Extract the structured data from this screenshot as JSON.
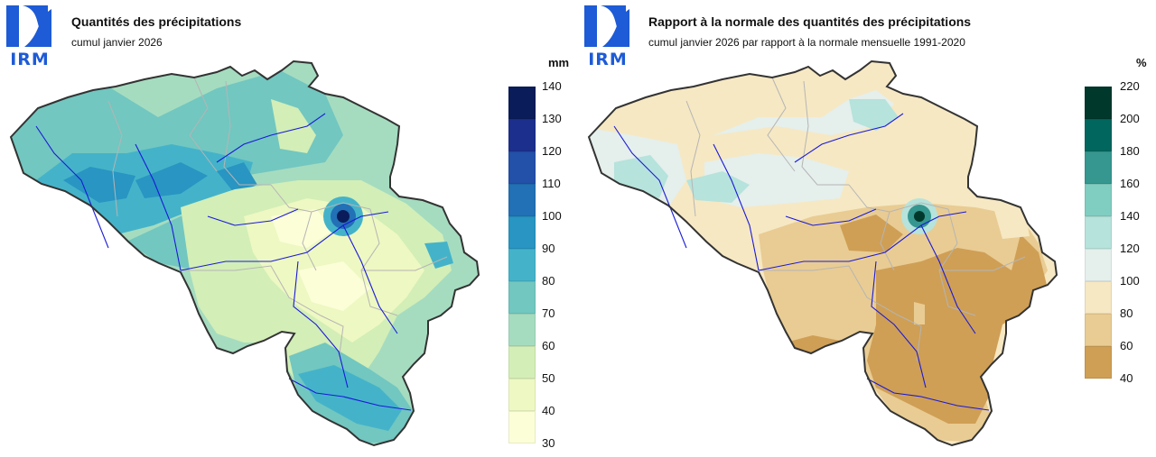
{
  "maps": [
    {
      "id": "precip",
      "logo_text": "IRM",
      "title": "Quantités des précipitations",
      "subtitle": "cumul janvier 2026",
      "unit": "mm",
      "legend": {
        "ticks": [
          "140",
          "130",
          "120",
          "110",
          "100",
          "90",
          "80",
          "70",
          "60",
          "50",
          "40",
          "30"
        ],
        "colors": [
          "#0b1c5a",
          "#1c2f8c",
          "#2350a8",
          "#2270b5",
          "#2895c2",
          "#44b3c9",
          "#72c7c0",
          "#a5dcc0",
          "#d3eeb7",
          "#eef8c2",
          "#fcfed8"
        ]
      },
      "zones": [
        {
          "fill": "#a5dcc0",
          "value": "60-70 mm"
        },
        {
          "fill": "#72c7c0",
          "value": "70-80 mm"
        },
        {
          "fill": "#44b3c9",
          "value": "80-90 mm"
        },
        {
          "fill": "#2895c2",
          "value": "90-100 mm"
        },
        {
          "fill": "#d3eeb7",
          "value": "50-60 mm"
        },
        {
          "fill": "#eef8c2",
          "value": "40-50 mm"
        },
        {
          "fill": "#fcfed8",
          "value": "30-40 mm"
        },
        {
          "fill": "#0b1c5a",
          "value": "> 130 mm"
        }
      ]
    },
    {
      "id": "ratio",
      "logo_text": "IRM",
      "title": "Rapport à la normale des quantités des précipitations",
      "subtitle": "cumul janvier 2026 par rapport à la normale mensuelle 1991-2020",
      "unit": "%",
      "legend": {
        "ticks": [
          "220",
          "200",
          "180",
          "160",
          "140",
          "120",
          "100",
          "80",
          "60",
          "40"
        ],
        "colors": [
          "#00382c",
          "#01665e",
          "#35978f",
          "#80cdc1",
          "#b6e3dc",
          "#e5efec",
          "#f6e8c3",
          "#e9cc93",
          "#cf9f55"
        ]
      },
      "zones": [
        {
          "fill": "#f6e8c3",
          "value": "80-100 %"
        },
        {
          "fill": "#e5efec",
          "value": "100-120 %"
        },
        {
          "fill": "#b6e3dc",
          "value": "120-140 %"
        },
        {
          "fill": "#e9cc93",
          "value": "60-80 %"
        },
        {
          "fill": "#cf9f55",
          "value": "40-60 %"
        },
        {
          "fill": "#00382c",
          "value": "> 200 %"
        }
      ]
    }
  ]
}
